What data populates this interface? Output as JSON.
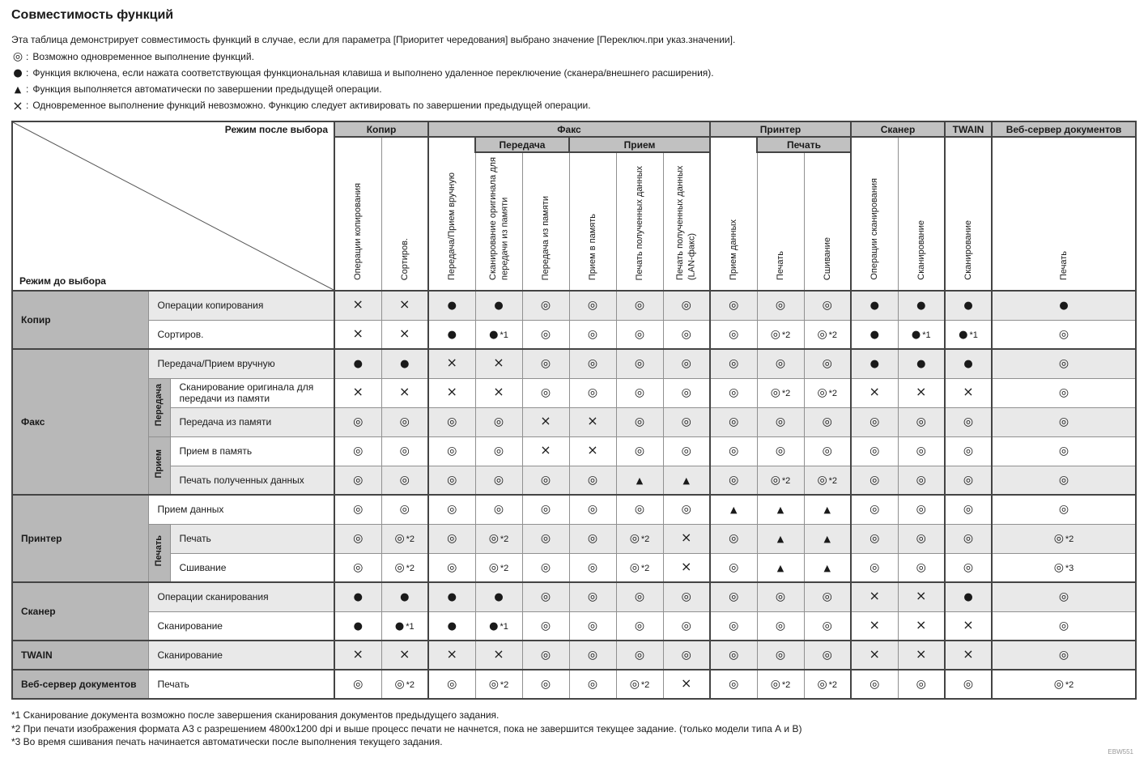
{
  "title": "Совместимость функций",
  "intro": "Эта таблица демонстрирует совместимость функций в случае, если для параметра [Приоритет чередования] выбрано значение [Переключ.при указ.значении].",
  "legend": [
    {
      "symbol": "◎",
      "text": "Возможно одновременное выполнение функций."
    },
    {
      "symbol": "●",
      "text": "Функция включена, если нажата соответствующая функциональная клавиша и выполнено удаленное переключение (сканера/внешнего расширения)."
    },
    {
      "symbol": "▲",
      "text": "Функция выполняется автоматически по завершении предыдущей операции."
    },
    {
      "symbol": "×",
      "text": "Одновременное выполнение функций невозможно. Функцию следует активировать по завершении предыдущей операции."
    }
  ],
  "matrix": {
    "mode_after": "Режим после выбора",
    "mode_before": "Режим до выбора",
    "columns": [
      {
        "group": "Копир",
        "sub": null,
        "label": "Операции копирования"
      },
      {
        "group": "Копир",
        "sub": null,
        "label": "Сортиров."
      },
      {
        "group": "Факс",
        "sub": null,
        "label": "Передача/Прием вручную"
      },
      {
        "group": "Факс",
        "sub": "Передача",
        "label": "Сканирование оригинала для передачи из памяти"
      },
      {
        "group": "Факс",
        "sub": "Передача",
        "label": "Передача из памяти"
      },
      {
        "group": "Факс",
        "sub": "Прием",
        "label": "Прием в память"
      },
      {
        "group": "Факс",
        "sub": "Прием",
        "label": "Печать полученных данных"
      },
      {
        "group": "Факс",
        "sub": "Прием",
        "label": "Печать полученных данных (LAN-факс)"
      },
      {
        "group": "Принтер",
        "sub": null,
        "label": "Прием данных"
      },
      {
        "group": "Принтер",
        "sub": "Печать",
        "label": "Печать"
      },
      {
        "group": "Принтер",
        "sub": "Печать",
        "label": "Сшивание"
      },
      {
        "group": "Сканер",
        "sub": null,
        "label": "Операции сканирования"
      },
      {
        "group": "Сканер",
        "sub": null,
        "label": "Сканирование"
      },
      {
        "group": "TWAIN",
        "sub": null,
        "label": "Сканирование"
      },
      {
        "group": "Веб-сервер документов",
        "sub": null,
        "label": "Печать"
      }
    ],
    "rows": [
      {
        "group": "Копир",
        "sub": null,
        "label": "Операции копирования",
        "cells": [
          "×",
          "×",
          "●",
          "●",
          "◎",
          "◎",
          "◎",
          "◎",
          "◎",
          "◎",
          "◎",
          "●",
          "●",
          "●",
          "●"
        ]
      },
      {
        "group": "Копир",
        "sub": null,
        "label": "Сортиров.",
        "cells": [
          "×",
          "×",
          "●",
          "●*1",
          "◎",
          "◎",
          "◎",
          "◎",
          "◎",
          "◎*2",
          "◎*2",
          "●",
          "●*1",
          "●*1",
          "◎"
        ]
      },
      {
        "group": "Факс",
        "sub": null,
        "label": "Передача/Прием вручную",
        "cells": [
          "●",
          "●",
          "×",
          "×",
          "◎",
          "◎",
          "◎",
          "◎",
          "◎",
          "◎",
          "◎",
          "●",
          "●",
          "●",
          "◎"
        ]
      },
      {
        "group": "Факс",
        "sub": "Передача",
        "label": "Сканирование оригинала для передачи из памяти",
        "cells": [
          "×",
          "×",
          "×",
          "×",
          "◎",
          "◎",
          "◎",
          "◎",
          "◎",
          "◎*2",
          "◎*2",
          "×",
          "×",
          "×",
          "◎"
        ]
      },
      {
        "group": "Факс",
        "sub": "Передача",
        "label": "Передача из памяти",
        "cells": [
          "◎",
          "◎",
          "◎",
          "◎",
          "×",
          "×",
          "◎",
          "◎",
          "◎",
          "◎",
          "◎",
          "◎",
          "◎",
          "◎",
          "◎"
        ]
      },
      {
        "group": "Факс",
        "sub": "Прием",
        "label": "Прием в память",
        "cells": [
          "◎",
          "◎",
          "◎",
          "◎",
          "×",
          "×",
          "◎",
          "◎",
          "◎",
          "◎",
          "◎",
          "◎",
          "◎",
          "◎",
          "◎"
        ]
      },
      {
        "group": "Факс",
        "sub": "Прием",
        "label": "Печать полученных данных",
        "cells": [
          "◎",
          "◎",
          "◎",
          "◎",
          "◎",
          "◎",
          "▲",
          "▲",
          "◎",
          "◎*2",
          "◎*2",
          "◎",
          "◎",
          "◎",
          "◎"
        ]
      },
      {
        "group": "Принтер",
        "sub": null,
        "label": "Прием данных",
        "cells": [
          "◎",
          "◎",
          "◎",
          "◎",
          "◎",
          "◎",
          "◎",
          "◎",
          "▲",
          "▲",
          "▲",
          "◎",
          "◎",
          "◎",
          "◎"
        ]
      },
      {
        "group": "Принтер",
        "sub": "Печать",
        "label": "Печать",
        "cells": [
          "◎",
          "◎*2",
          "◎",
          "◎*2",
          "◎",
          "◎",
          "◎*2",
          "×",
          "◎",
          "▲",
          "▲",
          "◎",
          "◎",
          "◎",
          "◎*2"
        ]
      },
      {
        "group": "Принтер",
        "sub": "Печать",
        "label": "Сшивание",
        "cells": [
          "◎",
          "◎*2",
          "◎",
          "◎*2",
          "◎",
          "◎",
          "◎*2",
          "×",
          "◎",
          "▲",
          "▲",
          "◎",
          "◎",
          "◎",
          "◎*3"
        ]
      },
      {
        "group": "Сканер",
        "sub": null,
        "label": "Операции сканирования",
        "cells": [
          "●",
          "●",
          "●",
          "●",
          "◎",
          "◎",
          "◎",
          "◎",
          "◎",
          "◎",
          "◎",
          "×",
          "×",
          "●",
          "◎"
        ]
      },
      {
        "group": "Сканер",
        "sub": null,
        "label": "Сканирование",
        "cells": [
          "●",
          "●*1",
          "●",
          "●*1",
          "◎",
          "◎",
          "◎",
          "◎",
          "◎",
          "◎",
          "◎",
          "×",
          "×",
          "×",
          "◎"
        ]
      },
      {
        "group": "TWAIN",
        "sub": null,
        "label": "Сканирование",
        "cells": [
          "×",
          "×",
          "×",
          "×",
          "◎",
          "◎",
          "◎",
          "◎",
          "◎",
          "◎",
          "◎",
          "×",
          "×",
          "×",
          "◎"
        ]
      },
      {
        "group": "Веб-сервер документов",
        "sub": null,
        "label": "Печать",
        "cells": [
          "◎",
          "◎*2",
          "◎",
          "◎*2",
          "◎",
          "◎",
          "◎*2",
          "×",
          "◎",
          "◎*2",
          "◎*2",
          "◎",
          "◎",
          "◎",
          "◎*2"
        ]
      }
    ]
  },
  "footnotes": [
    "*1 Сканирование документа возможно после завершения сканирования документов предыдущего задания.",
    "*2 При печати изображения формата А3 с разрешением 4800х1200 dpi и выше процесс печати не начнется, пока не завершится текущее задание. (только модели типа А и В)",
    "*3 Во время сшивания печать начинается автоматически после выполнения текущего задания."
  ],
  "doc_id": "EBW551"
}
